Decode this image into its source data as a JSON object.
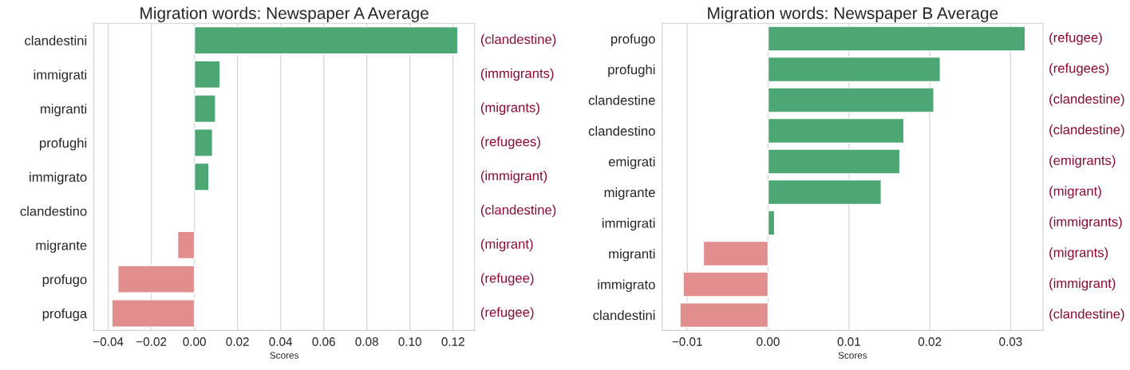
{
  "chart_data": [
    {
      "type": "bar",
      "orientation": "horizontal",
      "title": "Migration words: Newspaper A Average",
      "xlabel": "Scores",
      "categories": [
        "clandestini",
        "immigrati",
        "migranti",
        "profughi",
        "immigrato",
        "clandestino",
        "migrante",
        "profugo",
        "profuga"
      ],
      "values": [
        0.1222,
        0.0119,
        0.0098,
        0.0084,
        0.0067,
        null,
        -0.0078,
        -0.0355,
        -0.0383
      ],
      "colors": [
        "#4ca775",
        "#4ca775",
        "#4ca775",
        "#4ca775",
        "#4ca775",
        "#4ca775",
        "#e28d8e",
        "#e28d8e",
        "#e28d8e"
      ],
      "xlim": [
        -0.0467,
        0.13
      ],
      "xticks": [
        {
          "value": -0.04,
          "label": "−0.04"
        },
        {
          "value": -0.02,
          "label": "−0.02"
        },
        {
          "value": 0,
          "label": "0.00"
        },
        {
          "value": 0.02,
          "label": "0.02"
        },
        {
          "value": 0.04,
          "label": "0.04"
        },
        {
          "value": 0.06,
          "label": "0.06"
        },
        {
          "value": 0.08,
          "label": "0.08"
        },
        {
          "value": 0.1,
          "label": "0.10"
        },
        {
          "value": 0.12,
          "label": "0.12"
        }
      ],
      "grid": "x",
      "annotations": [
        "(clandestine)",
        "(immigrants)",
        "(migrants)",
        "(refugees)",
        "(immigrant)",
        "(clandestine)",
        "(migrant)",
        "(refugee)",
        "(refugee)"
      ]
    },
    {
      "type": "bar",
      "orientation": "horizontal",
      "title": "Migration words: Newspaper B Average",
      "xlabel": "Scores",
      "categories": [
        "profugo",
        "profughi",
        "clandestine",
        "clandestino",
        "emigrati",
        "migrante",
        "immigrati",
        "migranti",
        "immigrato",
        "clandestini"
      ],
      "values": [
        0.0318,
        0.0213,
        0.0205,
        0.0168,
        0.0163,
        0.014,
        0.0008,
        -0.008,
        -0.0105,
        -0.0109
      ],
      "colors": [
        "#4ca775",
        "#4ca775",
        "#4ca775",
        "#4ca775",
        "#4ca775",
        "#4ca775",
        "#4ca775",
        "#e28d8e",
        "#e28d8e",
        "#e28d8e"
      ],
      "xlim": [
        -0.0131,
        0.034
      ],
      "xticks": [
        {
          "value": -0.01,
          "label": "−0.01"
        },
        {
          "value": 0,
          "label": "0.00"
        },
        {
          "value": 0.01,
          "label": "0.01"
        },
        {
          "value": 0.02,
          "label": "0.02"
        },
        {
          "value": 0.03,
          "label": "0.03"
        }
      ],
      "grid": "x",
      "annotations": [
        "(refugee)",
        "(refugees)",
        "(clandestine)",
        "(clandestine)",
        "(emigrants)",
        "(migrant)",
        "(immigrants)",
        "(migrants)",
        "(immigrant)",
        "(clandestine)"
      ]
    }
  ]
}
